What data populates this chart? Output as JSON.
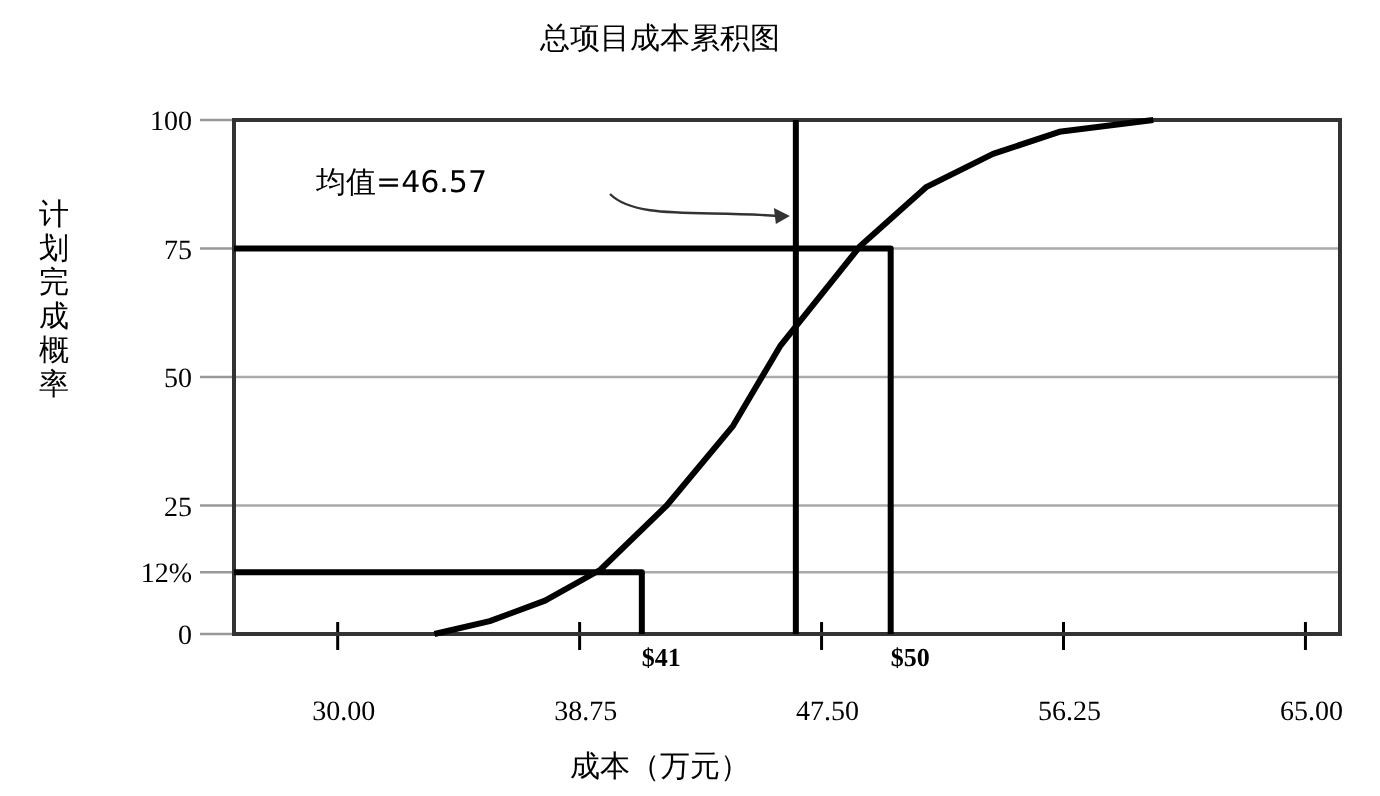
{
  "chart_data": {
    "type": "line",
    "title": "总项目成本累积图",
    "xlabel": "成本（万元）",
    "ylabel": "计划完成概率",
    "xlim": [
      26.25,
      66.25
    ],
    "xticks": [
      {
        "value": 30,
        "label": "30.00"
      },
      {
        "value": 38.75,
        "label": "38.75"
      },
      {
        "value": 47.5,
        "label": "47.50"
      },
      {
        "value": 56.25,
        "label": "56.25"
      },
      {
        "value": 65,
        "label": "65.00"
      }
    ],
    "ylim": [
      0,
      100
    ],
    "yticks": [
      0,
      {
        "value": 12,
        "label": "12%"
      },
      25,
      50,
      75,
      100
    ],
    "grid": "y",
    "series": [
      {
        "color": "#000000",
        "x": [
          33.5,
          35.5,
          37.5,
          39.5,
          41.9,
          44.3,
          46.0,
          48.9,
          51.3,
          53.7,
          56.1,
          59.5
        ],
        "values": [
          0,
          2.5,
          6.5,
          12.5,
          25,
          40.5,
          56,
          75.5,
          87,
          93.4,
          97.7,
          100
        ]
      },
      {
        "color": "#000000",
        "x": [
          26.25,
          41,
          41
        ],
        "values": [
          12,
          12,
          0
        ]
      },
      {
        "color": "#000000",
        "x": [
          26.25,
          50,
          50
        ],
        "values": [
          75,
          75,
          0
        ]
      }
    ],
    "ref_lines": [
      {
        "axis": "x",
        "value": 46.57,
        "color": "#000000"
      }
    ],
    "annotations": [
      "均值=46.57",
      {
        "text": "$41",
        "x": 41,
        "y": 0
      },
      {
        "text": "$50",
        "x": 50,
        "y": 0
      }
    ]
  }
}
